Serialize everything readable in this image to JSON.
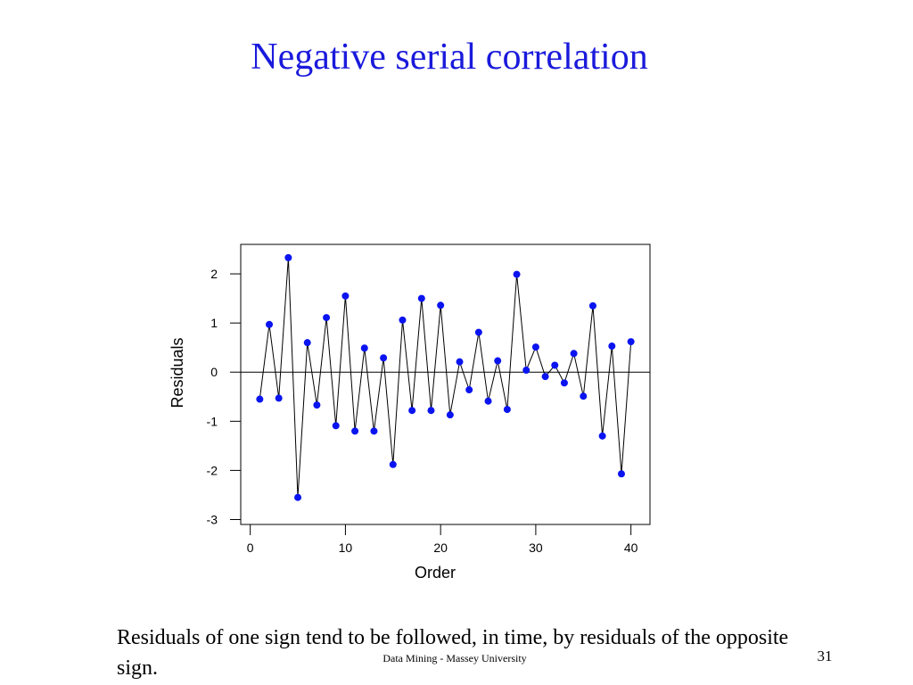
{
  "slide": {
    "title": "Negative serial correlation",
    "caption": "Residuals of one sign tend to be followed, in time, by residuals of the opposite sign.",
    "footer": "Data Mining - Massey University",
    "page_number": "31"
  },
  "colors": {
    "title": "#1a1adc",
    "points": "#0a14f0",
    "line": "#000000"
  },
  "chart_data": {
    "type": "line",
    "title": "",
    "xlabel": "Order",
    "ylabel": "Residuals",
    "xlim": [
      -1,
      42
    ],
    "ylim": [
      -3.1,
      2.6
    ],
    "xticks": [
      0,
      10,
      20,
      30,
      40
    ],
    "yticks": [
      -3,
      -2,
      -1,
      0,
      1,
      2
    ],
    "reference_line": 0,
    "grid": false,
    "series": [
      {
        "name": "Residuals",
        "x": [
          1,
          2,
          3,
          4,
          5,
          6,
          7,
          8,
          9,
          10,
          11,
          12,
          13,
          14,
          15,
          16,
          17,
          18,
          19,
          20,
          21,
          22,
          23,
          24,
          25,
          26,
          27,
          28,
          29,
          30,
          31,
          32,
          33,
          34,
          35,
          36,
          37,
          38,
          39,
          40
        ],
        "values": [
          -0.55,
          0.97,
          -0.53,
          2.33,
          -2.55,
          0.6,
          -0.67,
          1.11,
          -1.09,
          1.55,
          -1.2,
          0.49,
          -1.2,
          0.29,
          -1.88,
          1.06,
          -0.78,
          1.5,
          -0.78,
          1.36,
          -0.87,
          0.21,
          -0.36,
          0.81,
          -0.59,
          0.23,
          -0.76,
          1.99,
          0.04,
          0.51,
          -0.09,
          0.14,
          -0.22,
          0.38,
          -0.49,
          1.35,
          -1.3,
          0.53,
          -2.07,
          0.62
        ]
      }
    ]
  }
}
